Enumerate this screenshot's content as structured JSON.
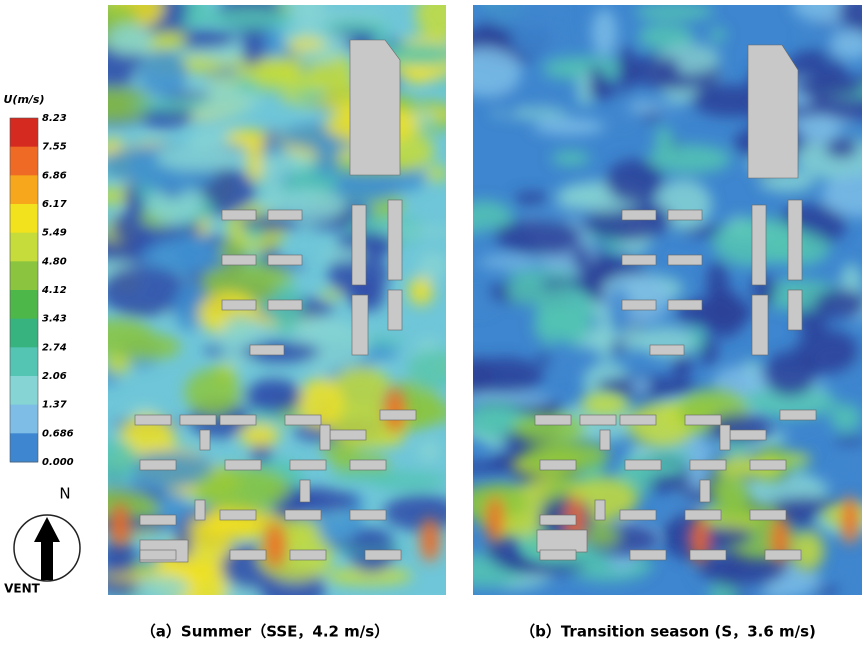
{
  "legend": {
    "title": "U(m/s)",
    "labels": [
      "8.23",
      "7.55",
      "6.86",
      "6.17",
      "5.49",
      "4.80",
      "4.12",
      "3.43",
      "2.74",
      "2.06",
      "1.37",
      "0.686",
      "0.000"
    ]
  },
  "compass": {
    "north": "N",
    "label": "VENT"
  },
  "captions": [
    "（a）Summer（SSE，4.2 m/s）",
    "（b）Transition season (S，3.6 m/s)"
  ]
}
